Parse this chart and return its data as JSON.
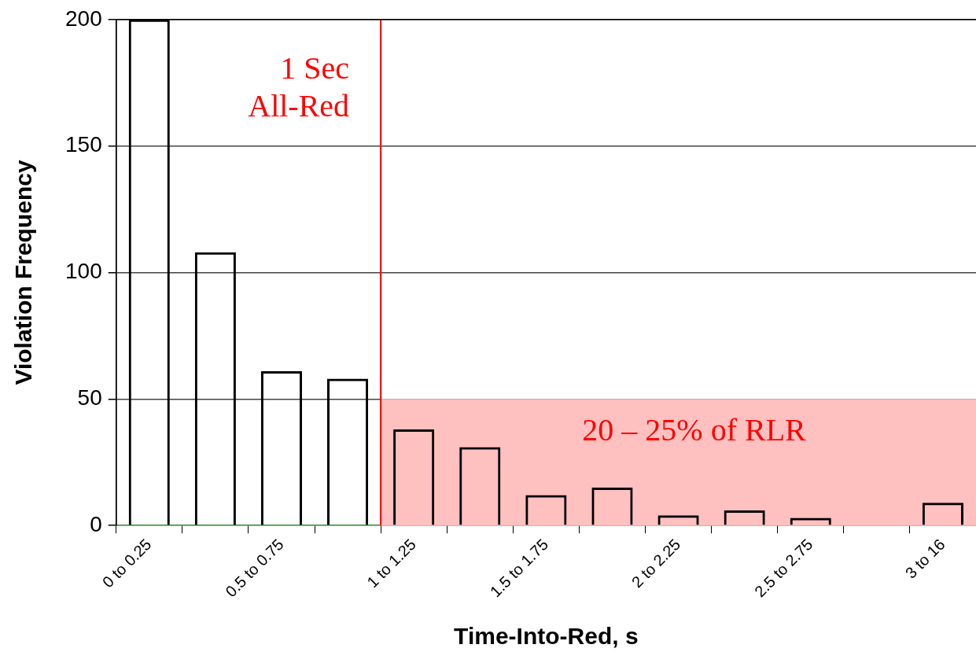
{
  "chart_data": {
    "type": "bar",
    "xlabel": "Time-Into-Red, s",
    "ylabel": "Violation Frequency",
    "categories": [
      "0 to 0.25",
      null,
      "0.5 to 0.75",
      null,
      "1 to 1.25",
      null,
      "1.5 to 1.75",
      null,
      "2 to 2.25",
      null,
      "2.5 to 2.75",
      null,
      "3 to 16"
    ],
    "values": [
      200,
      108,
      61,
      58,
      38,
      31,
      12,
      15,
      4,
      6,
      3,
      0,
      9
    ],
    "color": "#000000",
    "ylim": [
      0,
      200
    ],
    "yticks": [
      0,
      50,
      100,
      150,
      200
    ],
    "grid": "y",
    "legend": false,
    "ref_lines": [
      {
        "axis": "x",
        "value": "1 to 1.25",
        "label": "1 Sec All-Red",
        "color": "#ff0000"
      }
    ],
    "bands": [
      {
        "axis": "y",
        "from": 0,
        "to": 50,
        "label": "20 – 25% of RLR",
        "color": "#ffc0c0"
      }
    ]
  }
}
